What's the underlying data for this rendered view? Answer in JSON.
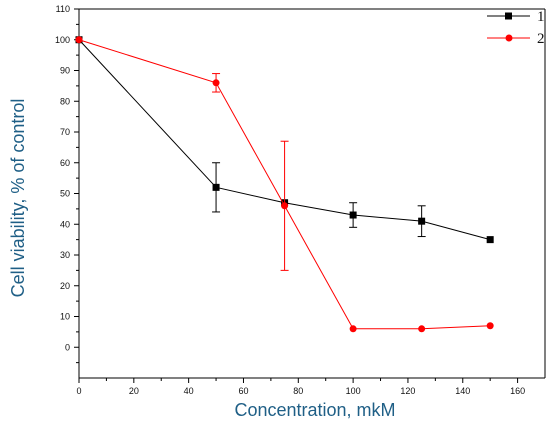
{
  "chart_data": {
    "type": "line",
    "xlabel": "Concentration, mkM",
    "ylabel": "Cell viability, % of control",
    "xlim": [
      0,
      170
    ],
    "ylim": [
      -10,
      110
    ],
    "xticks": [
      0,
      20,
      40,
      60,
      80,
      100,
      120,
      140,
      160
    ],
    "yticks": [
      0,
      10,
      20,
      30,
      40,
      50,
      60,
      70,
      80,
      90,
      100,
      110
    ],
    "grid": false,
    "legend": "top-right",
    "series": [
      {
        "name": "1",
        "color": "#000000",
        "marker": "square",
        "x": [
          0,
          50,
          75,
          100,
          125,
          150
        ],
        "y": [
          100,
          52,
          47,
          43,
          41,
          35
        ],
        "err": [
          0,
          8,
          0,
          4,
          5,
          0
        ]
      },
      {
        "name": "2",
        "color": "#ff0000",
        "marker": "circle",
        "x": [
          0,
          50,
          75,
          100,
          125,
          150
        ],
        "y": [
          100,
          86,
          46,
          6,
          6,
          7
        ],
        "err": [
          0,
          3,
          21,
          0,
          0,
          0
        ]
      }
    ]
  }
}
